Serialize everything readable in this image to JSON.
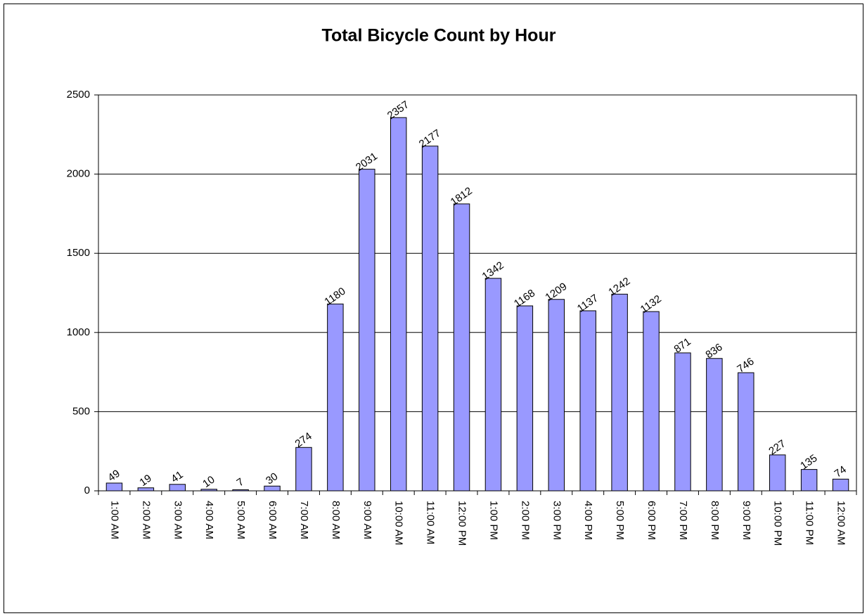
{
  "chart_data": {
    "type": "bar",
    "title": "Total Bicycle Count by Hour",
    "categories": [
      "1:00 AM",
      "2:00 AM",
      "3:00 AM",
      "4:00 AM",
      "5:00 AM",
      "6:00 AM",
      "7:00 AM",
      "8:00 AM",
      "9:00 AM",
      "10:00 AM",
      "11:00 AM",
      "12:00 PM",
      "1:00 PM",
      "2:00 PM",
      "3:00 PM",
      "4:00 PM",
      "5:00 PM",
      "6:00 PM",
      "7:00 PM",
      "8:00 PM",
      "9:00 PM",
      "10:00 PM",
      "11:00 PM",
      "12:00 AM"
    ],
    "values": [
      49,
      19,
      41,
      10,
      7,
      30,
      274,
      1180,
      2031,
      2357,
      2177,
      1812,
      1342,
      1168,
      1209,
      1137,
      1242,
      1132,
      871,
      836,
      746,
      227,
      135,
      74
    ],
    "color": "#9999ff",
    "ylim": [
      0,
      2500
    ],
    "yticks": [
      0,
      500,
      1000,
      1500,
      2000,
      2500
    ],
    "grid": true
  }
}
